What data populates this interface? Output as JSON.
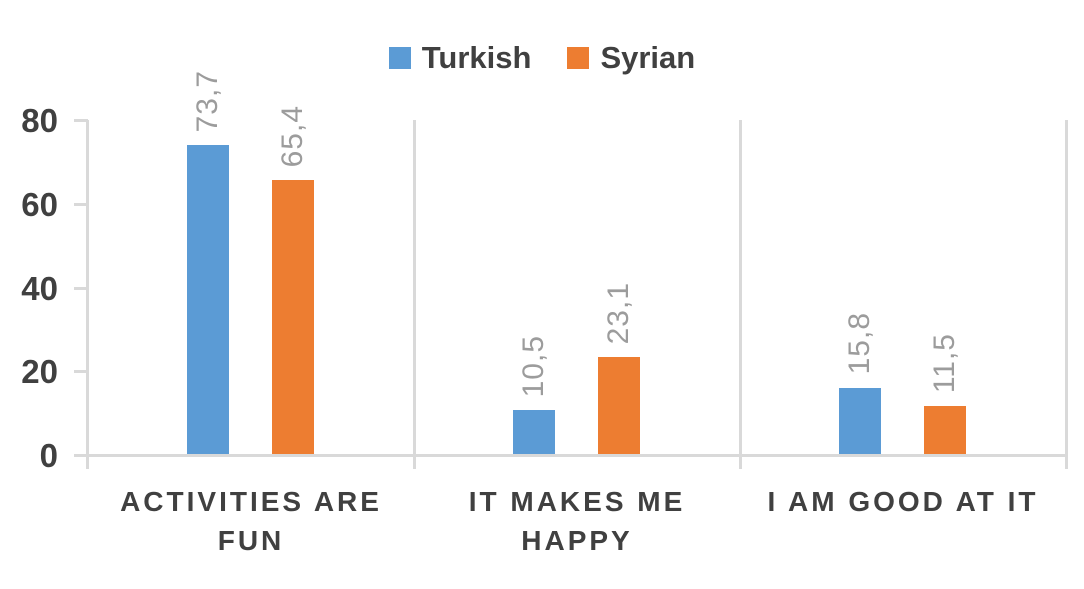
{
  "chart_data": {
    "type": "bar",
    "categories": [
      "ACTIVITIES ARE FUN",
      "IT MAKES ME HAPPY",
      "I AM GOOD AT IT"
    ],
    "category_label_lines": [
      [
        "ACTIVITIES ARE",
        "FUN"
      ],
      [
        "IT MAKES ME",
        "HAPPY"
      ],
      [
        "I AM GOOD AT IT"
      ]
    ],
    "series": [
      {
        "name": "Turkish",
        "color": "#5B9BD5",
        "values": [
          73.7,
          10.5,
          15.8
        ],
        "value_labels": [
          "73,7",
          "10,5",
          "15,8"
        ]
      },
      {
        "name": "Syrian",
        "color": "#ED7D31",
        "values": [
          65.4,
          23.1,
          11.5
        ],
        "value_labels": [
          "65,4",
          "23,1",
          "11,5"
        ]
      }
    ],
    "ylim": [
      0,
      80
    ],
    "yticks": [
      0,
      20,
      40,
      60,
      80
    ],
    "ytick_labels": [
      "0",
      "20",
      "40",
      "60",
      "80"
    ],
    "decimal_separator": ",",
    "legend": {
      "position": "top",
      "entries": [
        "Turkish",
        "Syrian"
      ]
    },
    "gridlines": {
      "horizontal": false,
      "vertical_category_separators": true
    },
    "colors": {
      "turkish_bar": "#5B9BD5",
      "syrian_bar": "#ED7D31",
      "axis_line": "#D9D9D9",
      "axis_tick_label": "#404040",
      "data_label": "#9C9C9C",
      "category_label": "#404040",
      "legend_text": "#404040",
      "background": "#FFFFFF"
    }
  }
}
